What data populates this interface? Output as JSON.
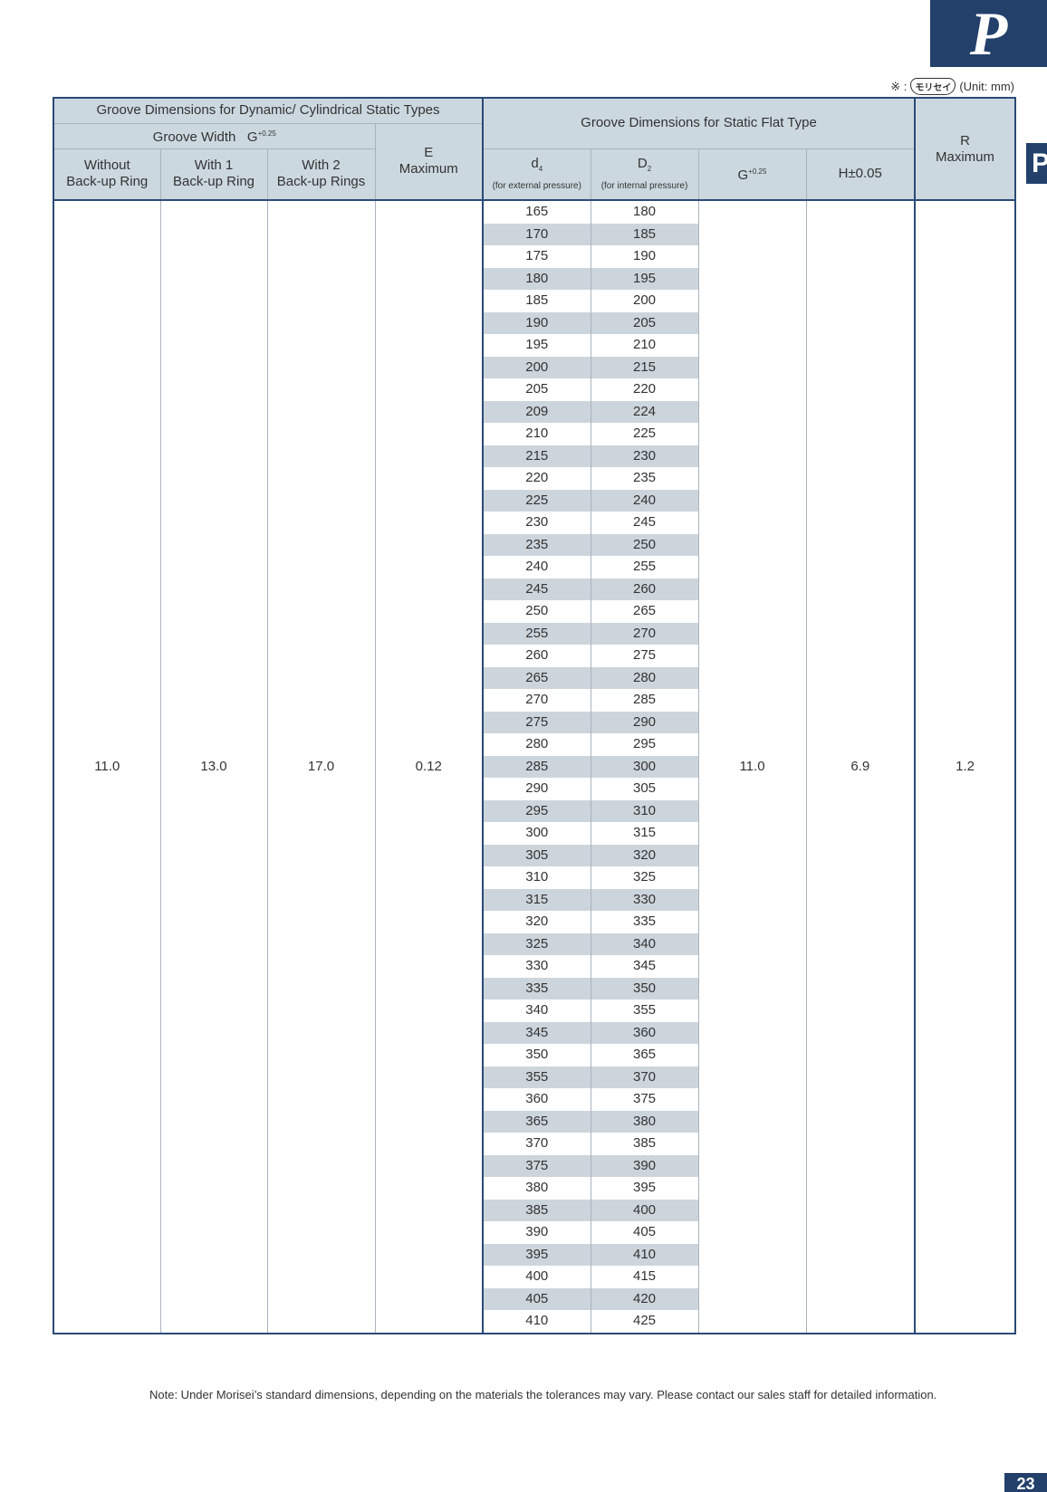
{
  "tab": {
    "letter": "P",
    "side_letter": "P"
  },
  "unit_note": {
    "mark": "※ :",
    "logo": "モリセイ",
    "unit": "(Unit: mm)"
  },
  "table": {
    "header": {
      "dynamic_group": "Groove Dimensions for Dynamic/ Cylindrical Static Types",
      "groove_width": {
        "label": "Groove Width",
        "symbol": "G",
        "sup": "+0.25"
      },
      "without": "Without\nBack-up Ring",
      "with_1": "With 1\nBack-up Ring",
      "with_2": "With 2\nBack-up Rings",
      "e_max": "E\nMaximum",
      "flat_group": "Groove Dimensions for Static Flat Type",
      "d4": {
        "symbol": "d",
        "sub": "4",
        "note": "(for external pressure)"
      },
      "D2": {
        "symbol": "D",
        "sub": "2",
        "note": "(for internal pressure)"
      },
      "g": {
        "symbol": "G",
        "sup": "+0.25"
      },
      "h": "H±0.05",
      "r_max": "R\nMaximum"
    },
    "constants": {
      "without": "11.0",
      "with_1": "13.0",
      "with_2": "17.0",
      "e_max": "0.12",
      "g": "11.0",
      "h": "6.9",
      "r_max": "1.2"
    },
    "rows": [
      [
        "165",
        "180"
      ],
      [
        "170",
        "185"
      ],
      [
        "175",
        "190"
      ],
      [
        "180",
        "195"
      ],
      [
        "185",
        "200"
      ],
      [
        "190",
        "205"
      ],
      [
        "195",
        "210"
      ],
      [
        "200",
        "215"
      ],
      [
        "205",
        "220"
      ],
      [
        "209",
        "224"
      ],
      [
        "210",
        "225"
      ],
      [
        "215",
        "230"
      ],
      [
        "220",
        "235"
      ],
      [
        "225",
        "240"
      ],
      [
        "230",
        "245"
      ],
      [
        "235",
        "250"
      ],
      [
        "240",
        "255"
      ],
      [
        "245",
        "260"
      ],
      [
        "250",
        "265"
      ],
      [
        "255",
        "270"
      ],
      [
        "260",
        "275"
      ],
      [
        "265",
        "280"
      ],
      [
        "270",
        "285"
      ],
      [
        "275",
        "290"
      ],
      [
        "280",
        "295"
      ],
      [
        "285",
        "300"
      ],
      [
        "290",
        "305"
      ],
      [
        "295",
        "310"
      ],
      [
        "300",
        "315"
      ],
      [
        "305",
        "320"
      ],
      [
        "310",
        "325"
      ],
      [
        "315",
        "330"
      ],
      [
        "320",
        "335"
      ],
      [
        "325",
        "340"
      ],
      [
        "330",
        "345"
      ],
      [
        "335",
        "350"
      ],
      [
        "340",
        "355"
      ],
      [
        "345",
        "360"
      ],
      [
        "350",
        "365"
      ],
      [
        "355",
        "370"
      ],
      [
        "360",
        "375"
      ],
      [
        "365",
        "380"
      ],
      [
        "370",
        "385"
      ],
      [
        "375",
        "390"
      ],
      [
        "380",
        "395"
      ],
      [
        "385",
        "400"
      ],
      [
        "390",
        "405"
      ],
      [
        "395",
        "410"
      ],
      [
        "400",
        "415"
      ],
      [
        "405",
        "420"
      ],
      [
        "410",
        "425"
      ]
    ]
  },
  "note": "Note: Under Morisei’s standard dimensions, depending on the materials the tolerances may vary. Please contact our sales staff for detailed information.",
  "page_number": "23"
}
